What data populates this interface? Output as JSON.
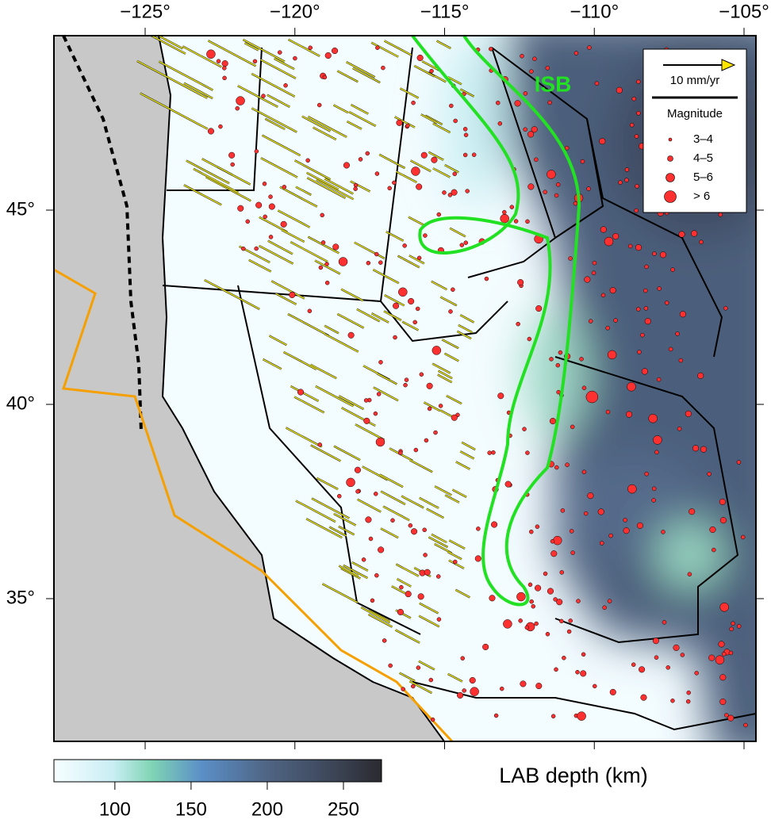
{
  "map": {
    "xticks": [
      {
        "value": -125,
        "label": "−125°"
      },
      {
        "value": -120,
        "label": "−120°"
      },
      {
        "value": -115,
        "label": "−115°"
      },
      {
        "value": -110,
        "label": "−110°"
      },
      {
        "value": -105,
        "label": "−105°"
      }
    ],
    "yticks": [
      {
        "value": 35,
        "label": "35°"
      },
      {
        "value": 40,
        "label": "40°"
      },
      {
        "value": 45,
        "label": "45°"
      }
    ],
    "isb_label": "ISB",
    "legend": {
      "arrow_label": "10 mm/yr",
      "title": "Magnitude",
      "items": [
        "3–4",
        "4–5",
        "5–6",
        "> 6"
      ]
    },
    "colorbar": {
      "title": "LAB depth (km)",
      "lim": [
        60,
        275
      ],
      "ticks": [
        100,
        150,
        200,
        250
      ]
    }
  }
}
